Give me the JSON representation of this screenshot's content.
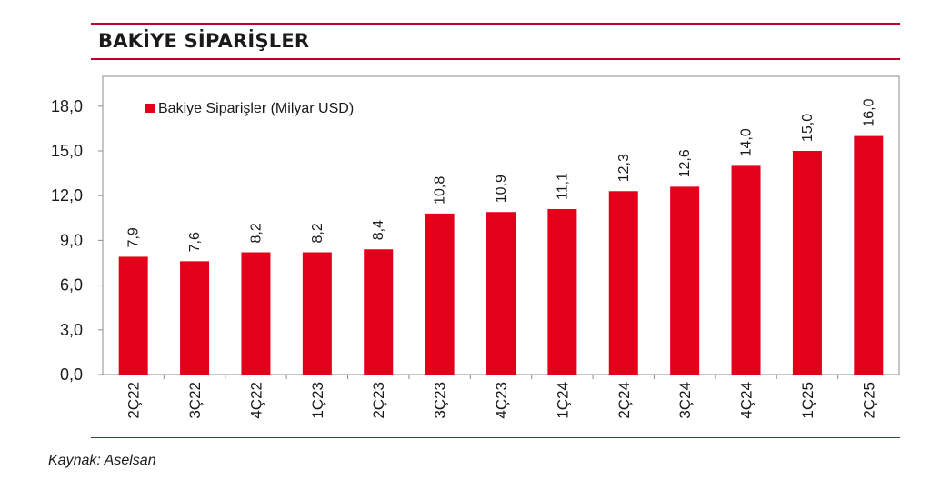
{
  "header": {
    "title": "BAKİYE SİPARİŞLER"
  },
  "footer": {
    "source": "Kaynak: Aselsan"
  },
  "colors": {
    "accent": "#c0002a",
    "bar": "#e2001a"
  },
  "chart_data": {
    "type": "bar",
    "title": "BAKİYE SİPARİŞLER",
    "categories": [
      "2Ç22",
      "3Ç22",
      "4Ç22",
      "1Ç23",
      "2Ç23",
      "3Ç23",
      "4Ç23",
      "1Ç24",
      "2Ç24",
      "3Ç24",
      "4Ç24",
      "1Ç25",
      "2Ç25"
    ],
    "series": [
      {
        "name": "Bakiye Siparişler (Milyar USD)",
        "values": [
          7.9,
          7.6,
          8.2,
          8.2,
          8.4,
          10.8,
          10.9,
          11.1,
          12.3,
          12.6,
          14.0,
          15.0,
          16.0
        ],
        "value_labels": [
          "7,9",
          "7,6",
          "8,2",
          "8,2",
          "8,4",
          "10,8",
          "10,9",
          "11,1",
          "12,3",
          "12,6",
          "14,0",
          "15,0",
          "16,0"
        ]
      }
    ],
    "ylim": [
      0,
      18
    ],
    "yticks": [
      0,
      3,
      6,
      9,
      12,
      15,
      18
    ],
    "ytick_labels": [
      "0,0",
      "3,0",
      "6,0",
      "9,0",
      "12,0",
      "15,0",
      "18,0"
    ],
    "xlabel": "",
    "ylabel": "",
    "grid": false,
    "legend_position": "top-left"
  }
}
